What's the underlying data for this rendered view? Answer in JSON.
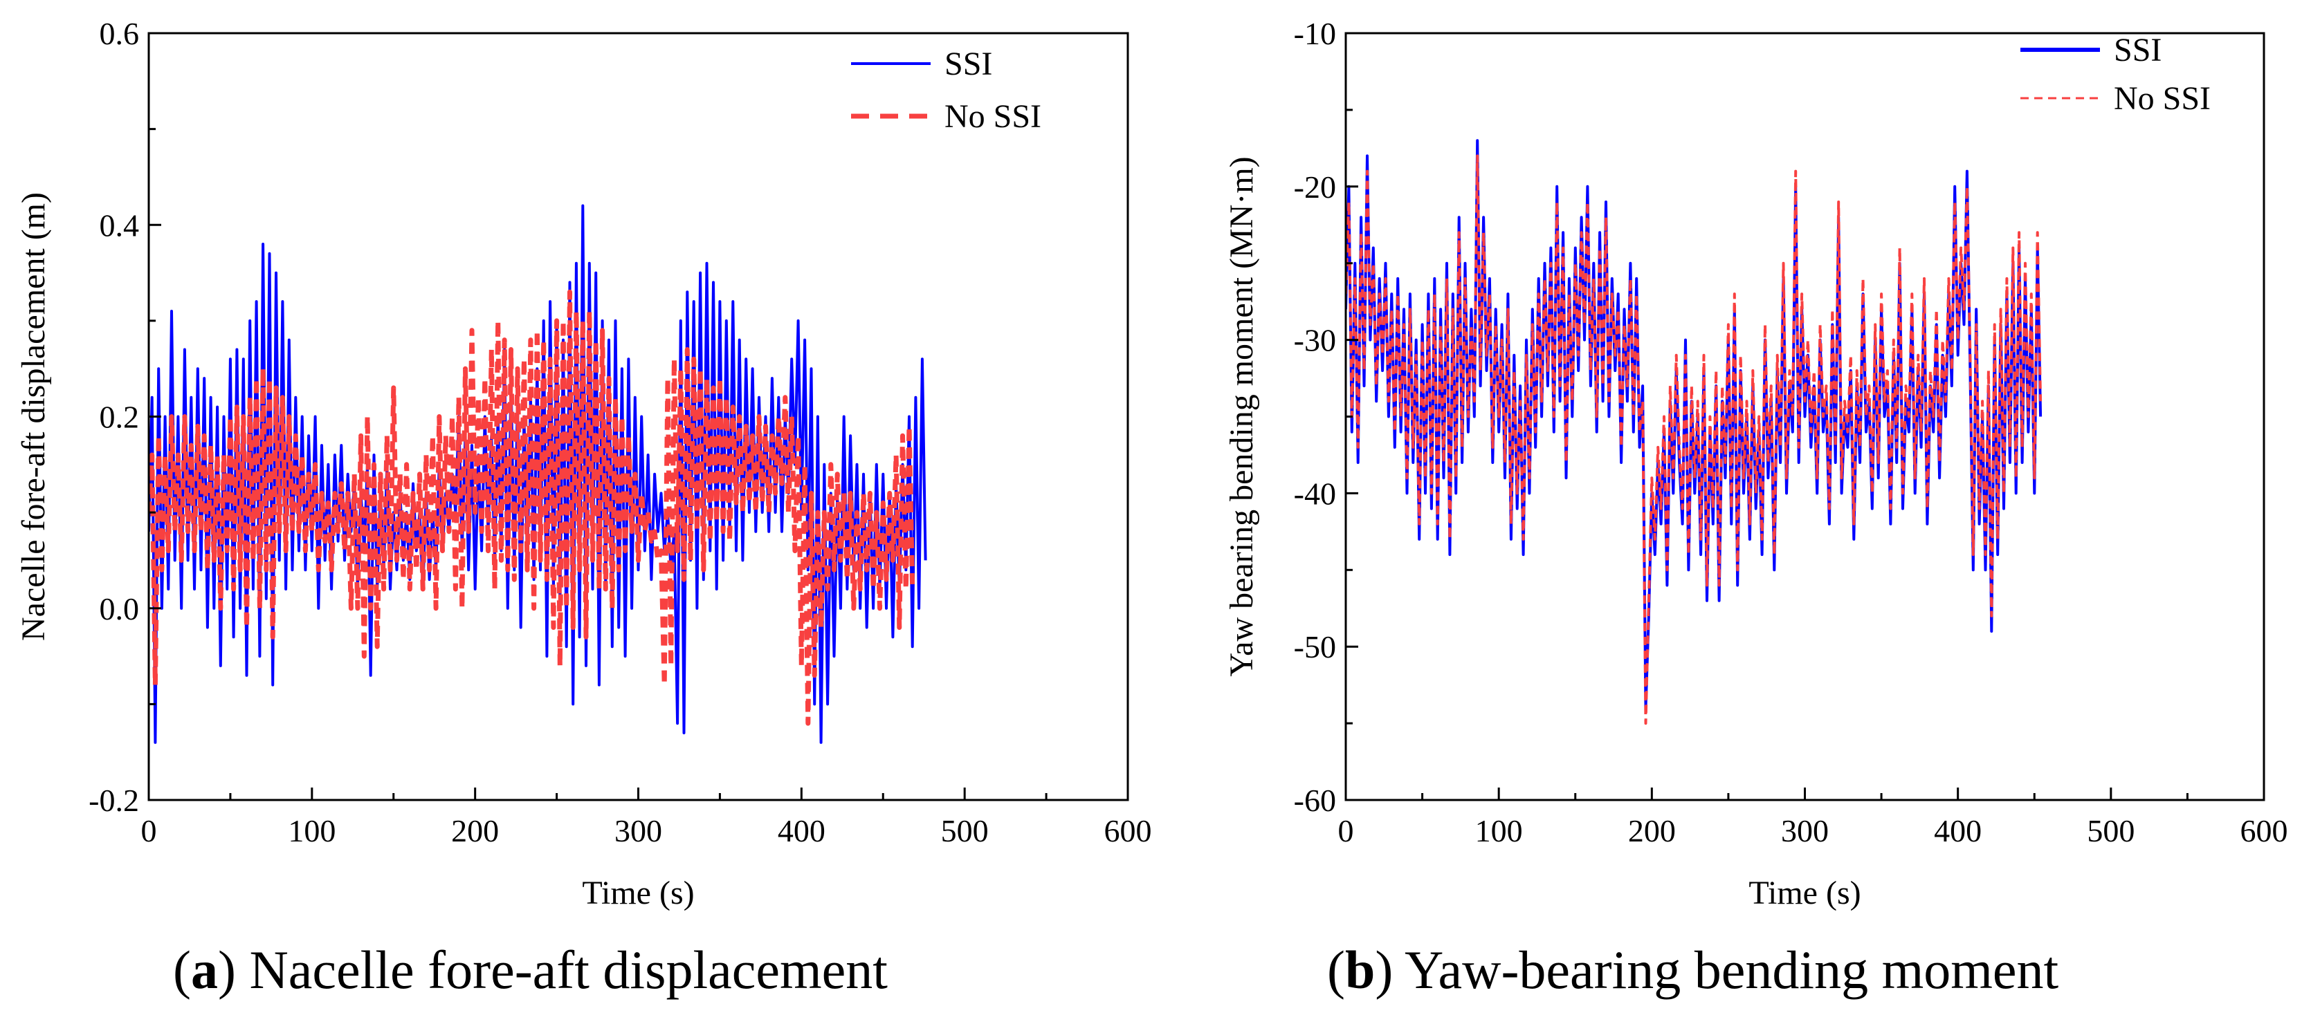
{
  "chart_data": [
    {
      "type": "line",
      "panel": "a",
      "caption_letter": "a",
      "caption_text": "Nacelle fore-aft displacement",
      "xlabel": "Time (s)",
      "ylabel": "Nacelle fore-aft displacement (m)",
      "xlim": [
        0,
        600
      ],
      "ylim": [
        -0.2,
        0.6
      ],
      "xticks": [
        "0",
        "100",
        "200",
        "300",
        "400",
        "500",
        "600"
      ],
      "yticks": [
        "-0.2",
        "0.0",
        "0.2",
        "0.4",
        "0.6"
      ],
      "legend_position": "top-right",
      "time_step_s": 2,
      "series": [
        {
          "name": "SSI",
          "color": "#0000ff",
          "style": "solid",
          "values": [
            0.08,
            0.22,
            -0.14,
            0.25,
            0.0,
            0.2,
            0.02,
            0.31,
            0.05,
            0.2,
            0.0,
            0.27,
            0.05,
            0.22,
            0.02,
            0.25,
            0.04,
            0.24,
            -0.02,
            0.22,
            0.0,
            0.21,
            -0.06,
            0.2,
            0.02,
            0.26,
            -0.03,
            0.27,
            0.0,
            0.26,
            -0.07,
            0.3,
            0.02,
            0.32,
            -0.05,
            0.38,
            0.01,
            0.37,
            -0.08,
            0.35,
            0.05,
            0.32,
            0.02,
            0.28,
            0.04,
            0.22,
            0.06,
            0.2,
            0.04,
            0.18,
            0.06,
            0.2,
            0.0,
            0.17,
            0.05,
            0.15,
            0.02,
            0.16,
            0.07,
            0.17,
            0.05,
            0.14,
            0.08,
            0.13,
            0.02,
            0.12,
            0.06,
            0.15,
            -0.07,
            0.16,
            0.02,
            0.12,
            0.04,
            0.15,
            0.02,
            0.1,
            0.04,
            0.12,
            0.05,
            0.1,
            0.03,
            0.13,
            0.06,
            0.1,
            0.02,
            0.12,
            0.03,
            0.1,
            0.04,
            0.15,
            0.06,
            0.12,
            0.08,
            0.14,
            0.1,
            0.2,
            0.06,
            0.18,
            0.04,
            0.17,
            0.02,
            0.16,
            0.06,
            0.2,
            0.08,
            0.18,
            0.05,
            0.2,
            0.06,
            0.27,
            0.0,
            0.24,
            0.04,
            0.22,
            -0.02,
            0.2,
            0.05,
            0.22,
            0.03,
            0.25,
            0.04,
            0.3,
            -0.05,
            0.32,
            0.02,
            0.3,
            0.0,
            0.28,
            -0.04,
            0.34,
            -0.1,
            0.36,
            -0.03,
            0.42,
            -0.06,
            0.36,
            0.02,
            0.35,
            -0.08,
            0.3,
            0.02,
            0.28,
            -0.04,
            0.3,
            -0.02,
            0.25,
            -0.05,
            0.26,
            0.0,
            0.22,
            0.04,
            0.2,
            0.06,
            0.16,
            0.03,
            0.14,
            0.08,
            0.12,
            0.06,
            0.1,
            0.04,
            0.08,
            -0.12,
            0.3,
            -0.13,
            0.33,
            0.05,
            0.32,
            0.0,
            0.35,
            0.03,
            0.36,
            0.06,
            0.34,
            0.02,
            0.32,
            0.05,
            0.3,
            0.08,
            0.32,
            0.06,
            0.28,
            0.05,
            0.26,
            0.1,
            0.25,
            0.08,
            0.22,
            0.1,
            0.2,
            0.08,
            0.24,
            0.1,
            0.22,
            0.08,
            0.2,
            0.12,
            0.26,
            0.15,
            0.3,
            0.1,
            0.28,
            0.04,
            0.25,
            -0.1,
            0.2,
            -0.14,
            0.15,
            -0.1,
            0.12,
            -0.05,
            0.12,
            0.0,
            0.2,
            0.02,
            0.18,
            0.04,
            0.15,
            0.0,
            0.14,
            -0.02,
            0.12,
            0.0,
            0.15,
            0.02,
            0.14,
            0.0,
            0.12,
            -0.03,
            0.13,
            0.02,
            0.15,
            0.04,
            0.2,
            -0.04,
            0.22,
            0.0,
            0.26,
            0.05
          ]
        },
        {
          "name": "No SSI",
          "color": "#f84040",
          "style": "dashed",
          "values": [
            0.1,
            0.16,
            -0.08,
            0.18,
            0.04,
            0.16,
            0.06,
            0.2,
            0.08,
            0.16,
            0.05,
            0.2,
            0.08,
            0.17,
            0.06,
            0.19,
            0.08,
            0.18,
            0.04,
            0.17,
            0.05,
            0.16,
            0.0,
            0.16,
            0.06,
            0.2,
            0.02,
            0.21,
            0.04,
            0.2,
            -0.02,
            0.22,
            0.05,
            0.24,
            0.0,
            0.25,
            0.04,
            0.24,
            -0.03,
            0.23,
            0.08,
            0.22,
            0.06,
            0.2,
            0.08,
            0.18,
            0.08,
            0.16,
            0.06,
            0.14,
            0.08,
            0.15,
            0.04,
            0.12,
            0.07,
            0.11,
            0.04,
            0.12,
            0.08,
            0.13,
            0.06,
            0.12,
            0.0,
            0.14,
            0.0,
            0.18,
            -0.05,
            0.2,
            0.0,
            0.15,
            -0.04,
            0.14,
            0.02,
            0.18,
            0.04,
            0.23,
            0.05,
            0.14,
            0.03,
            0.15,
            0.02,
            0.12,
            0.04,
            0.14,
            0.02,
            0.16,
            0.04,
            0.18,
            0.0,
            0.2,
            0.06,
            0.18,
            0.08,
            0.2,
            0.02,
            0.22,
            0.0,
            0.25,
            0.08,
            0.29,
            0.1,
            0.22,
            0.08,
            0.24,
            0.06,
            0.27,
            0.02,
            0.3,
            0.05,
            0.28,
            0.04,
            0.27,
            0.03,
            0.25,
            0.06,
            0.26,
            0.04,
            0.28,
            0.0,
            0.29,
            0.05,
            0.28,
            0.03,
            0.26,
            -0.02,
            0.3,
            -0.06,
            0.3,
            0.0,
            0.33,
            -0.02,
            0.31,
            0.04,
            0.3,
            -0.03,
            0.31,
            0.05,
            0.28,
            0.02,
            0.29,
            0.02,
            0.24,
            0.0,
            0.22,
            0.04,
            0.2,
            0.06,
            0.18,
            0.08,
            0.14,
            0.05,
            0.12,
            0.08,
            0.1,
            0.07,
            0.08,
            0.05,
            0.06,
            -0.08,
            0.24,
            -0.06,
            0.26,
            0.06,
            0.25,
            0.03,
            0.27,
            0.05,
            0.26,
            0.08,
            0.25,
            0.04,
            0.24,
            0.07,
            0.23,
            0.09,
            0.24,
            0.08,
            0.22,
            0.07,
            0.21,
            0.11,
            0.2,
            0.1,
            0.19,
            0.11,
            0.18,
            0.1,
            0.2,
            0.11,
            0.19,
            0.1,
            0.18,
            0.12,
            0.2,
            0.13,
            0.22,
            0.1,
            0.2,
            0.06,
            0.18,
            -0.06,
            0.15,
            -0.12,
            0.12,
            -0.07,
            0.1,
            -0.02,
            0.1,
            0.02,
            0.15,
            0.04,
            0.14,
            0.05,
            0.12,
            0.03,
            0.12,
            0.0,
            0.1,
            0.02,
            0.12,
            0.04,
            0.12,
            0.02,
            0.1,
            0.0,
            0.11,
            0.03,
            0.12,
            0.05,
            0.16,
            -0.02,
            0.18,
            0.02,
            0.19,
            0.02
          ]
        }
      ]
    },
    {
      "type": "line",
      "panel": "b",
      "caption_letter": "b",
      "caption_text": "Yaw-bearing bending moment",
      "xlabel": "Time (s)",
      "ylabel": "Yaw bearing bending moment (MN·m)",
      "xlim": [
        0,
        600
      ],
      "ylim": [
        -60,
        -10
      ],
      "xticks": [
        "0",
        "100",
        "200",
        "300",
        "400",
        "500",
        "600"
      ],
      "yticks": [
        "-60",
        "-50",
        "-40",
        "-30",
        "-20",
        "-10"
      ],
      "legend_position": "top-right",
      "time_step_s": 2,
      "series": [
        {
          "name": "SSI",
          "color": "#0000ff",
          "style": "solid",
          "values": [
            -28,
            -20,
            -36,
            -25,
            -38,
            -22,
            -33,
            -18,
            -30,
            -24,
            -34,
            -26,
            -32,
            -25,
            -35,
            -27,
            -37,
            -26,
            -36,
            -28,
            -40,
            -27,
            -38,
            -30,
            -43,
            -29,
            -40,
            -27,
            -41,
            -26,
            -43,
            -28,
            -39,
            -25,
            -44,
            -27,
            -40,
            -22,
            -38,
            -25,
            -36,
            -28,
            -35,
            -17,
            -33,
            -22,
            -32,
            -26,
            -38,
            -28,
            -36,
            -29,
            -39,
            -27,
            -43,
            -31,
            -41,
            -33,
            -44,
            -30,
            -40,
            -28,
            -37,
            -26,
            -35,
            -25,
            -33,
            -24,
            -36,
            -20,
            -34,
            -23,
            -39,
            -26,
            -35,
            -24,
            -32,
            -22,
            -30,
            -20,
            -33,
            -25,
            -36,
            -23,
            -34,
            -21,
            -35,
            -26,
            -32,
            -27,
            -38,
            -28,
            -34,
            -25,
            -36,
            -26,
            -37,
            -33,
            -54,
            -48,
            -40,
            -44,
            -38,
            -42,
            -36,
            -46,
            -34,
            -40,
            -32,
            -38,
            -42,
            -30,
            -45,
            -34,
            -40,
            -35,
            -44,
            -32,
            -47,
            -36,
            -42,
            -33,
            -47,
            -34,
            -39,
            -30,
            -42,
            -28,
            -46,
            -32,
            -40,
            -35,
            -43,
            -33,
            -41,
            -36,
            -44,
            -30,
            -39,
            -34,
            -45,
            -32,
            -38,
            -26,
            -40,
            -33,
            -36,
            -20,
            -38,
            -28,
            -35,
            -31,
            -37,
            -33,
            -40,
            -30,
            -36,
            -34,
            -42,
            -29,
            -38,
            -22,
            -40,
            -35,
            -37,
            -32,
            -43,
            -33,
            -38,
            -27,
            -36,
            -34,
            -41,
            -30,
            -39,
            -28,
            -35,
            -33,
            -42,
            -31,
            -38,
            -25,
            -41,
            -34,
            -36,
            -28,
            -40,
            -32,
            -37,
            -27,
            -42,
            -33,
            -36,
            -29,
            -39,
            -31,
            -35,
            -27,
            -33,
            -20,
            -31,
            -25,
            -29,
            -19,
            -32,
            -45,
            -28,
            -42,
            -35,
            -45,
            -33,
            -49,
            -30,
            -44,
            -29,
            -41,
            -27,
            -38,
            -25,
            -40,
            -24,
            -38,
            -26,
            -36,
            -28,
            -40,
            -24,
            -35
          ]
        },
        {
          "name": "No SSI",
          "color": "#f84040",
          "style": "dashed",
          "values": [
            -27,
            -21,
            -35,
            -26,
            -37,
            -23,
            -32,
            -19,
            -29,
            -25,
            -33,
            -27,
            -31,
            -26,
            -34,
            -28,
            -36,
            -27,
            -35,
            -29,
            -39,
            -28,
            -37,
            -31,
            -42,
            -30,
            -39,
            -28,
            -40,
            -27,
            -42,
            -29,
            -38,
            -26,
            -43,
            -28,
            -39,
            -23,
            -37,
            -26,
            -35,
            -29,
            -34,
            -18,
            -32,
            -23,
            -31,
            -27,
            -37,
            -29,
            -35,
            -30,
            -38,
            -28,
            -42,
            -32,
            -40,
            -34,
            -43,
            -31,
            -39,
            -29,
            -36,
            -27,
            -34,
            -26,
            -32,
            -25,
            -35,
            -21,
            -33,
            -24,
            -38,
            -27,
            -34,
            -25,
            -31,
            -23,
            -29,
            -21,
            -32,
            -26,
            -35,
            -24,
            -33,
            -22,
            -34,
            -27,
            -31,
            -28,
            -37,
            -29,
            -33,
            -26,
            -35,
            -27,
            -36,
            -34,
            -55,
            -47,
            -39,
            -43,
            -37,
            -41,
            -35,
            -45,
            -33,
            -39,
            -31,
            -37,
            -41,
            -31,
            -44,
            -33,
            -39,
            -34,
            -43,
            -31,
            -46,
            -35,
            -41,
            -32,
            -46,
            -33,
            -38,
            -29,
            -41,
            -27,
            -45,
            -31,
            -39,
            -34,
            -42,
            -32,
            -40,
            -35,
            -43,
            -29,
            -38,
            -33,
            -44,
            -31,
            -37,
            -25,
            -39,
            -32,
            -35,
            -19,
            -37,
            -27,
            -34,
            -30,
            -36,
            -32,
            -39,
            -29,
            -35,
            -33,
            -41,
            -28,
            -37,
            -21,
            -39,
            -34,
            -36,
            -31,
            -42,
            -32,
            -37,
            -26,
            -35,
            -33,
            -40,
            -29,
            -38,
            -27,
            -34,
            -32,
            -41,
            -30,
            -37,
            -24,
            -40,
            -33,
            -35,
            -27,
            -39,
            -31,
            -36,
            -26,
            -41,
            -32,
            -35,
            -28,
            -38,
            -30,
            -34,
            -26,
            -32,
            -21,
            -30,
            -24,
            -28,
            -20,
            -31,
            -44,
            -29,
            -41,
            -34,
            -44,
            -32,
            -48,
            -29,
            -43,
            -28,
            -40,
            -26,
            -37,
            -24,
            -39,
            -23,
            -37,
            -25,
            -35,
            -27,
            -39,
            -23,
            -34
          ]
        }
      ]
    }
  ]
}
